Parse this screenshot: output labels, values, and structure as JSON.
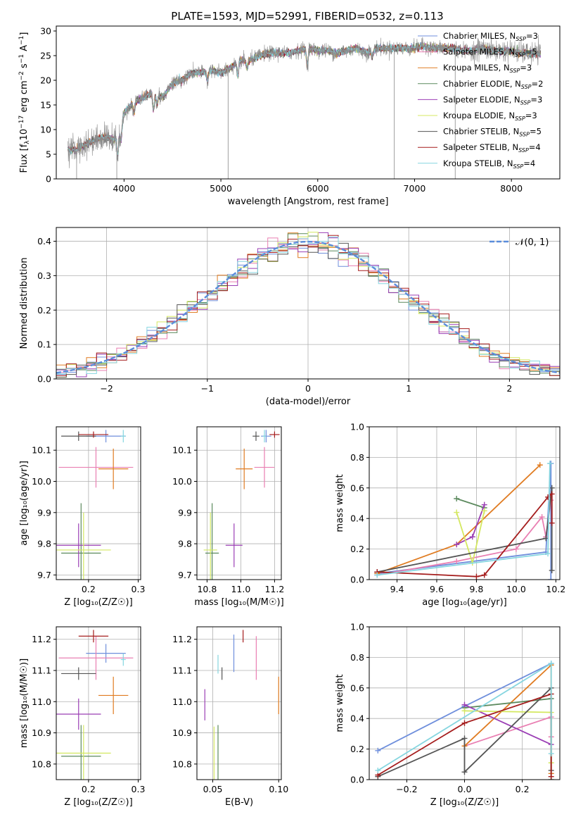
{
  "colors": {
    "Chabrier MILES": "#6f8fdc",
    "Salpeter MILES": "#e97fb2",
    "Kroupa MILES": "#e07c22",
    "Chabrier ELODIE": "#5c8a5e",
    "Salpeter ELODIE": "#9b3fb5",
    "Kroupa ELODIE": "#d4e860",
    "Chabrier STELIB": "#555555",
    "Salpeter STELIB": "#a51d1d",
    "Kroupa STELIB": "#86d6e0"
  },
  "chart_data": [
    {
      "id": "spectrum",
      "type": "line",
      "title": "PLATE=1593, MJD=52991, FIBERID=0532, z=0.113",
      "xlabel": "wavelength [Angstrom, rest frame]",
      "ylabel_parts": [
        "Flux [f",
        "λ",
        "10",
        "−17",
        " erg cm",
        "−2",
        " s",
        "−1",
        " A",
        "−1",
        "]"
      ],
      "xlim": [
        3300,
        8500
      ],
      "ylim": [
        0,
        31
      ],
      "xticks": [
        4000,
        5000,
        6000,
        7000,
        8000
      ],
      "yticks": [
        0,
        5,
        10,
        15,
        20,
        25,
        30
      ],
      "grid": false,
      "legend_position": "upper right",
      "legend": [
        {
          "model": "Chabrier MILES",
          "n": "3"
        },
        {
          "model": "Salpeter MILES",
          "n": "5"
        },
        {
          "model": "Kroupa MILES",
          "n": "3"
        },
        {
          "model": "Chabrier ELODIE",
          "n": "2"
        },
        {
          "model": "Salpeter ELODIE",
          "n": "3"
        },
        {
          "model": "Kroupa ELODIE",
          "n": "3"
        },
        {
          "model": "Chabrier STELIB",
          "n": "5"
        },
        {
          "model": "Salpeter STELIB",
          "n": "4"
        },
        {
          "model": "Kroupa STELIB",
          "n": "4"
        }
      ],
      "continuum": {
        "x": [
          3420,
          3500,
          3600,
          3700,
          3800,
          3900,
          3950,
          4000,
          4100,
          4200,
          4300,
          4400,
          4500,
          4600,
          4700,
          4800,
          4900,
          5000,
          5100,
          5200,
          5300,
          5400,
          5500,
          5600,
          5700,
          5800,
          5900,
          6000,
          6100,
          6200,
          6300,
          6400,
          6500,
          6600,
          6700,
          6800,
          6900,
          7000,
          7100,
          7200,
          7300,
          7400,
          7500,
          7600,
          7700,
          7800,
          7900,
          8000,
          8100,
          8200,
          8300
        ],
        "y": [
          6.0,
          5.8,
          7.0,
          8.0,
          8.5,
          8.0,
          9.0,
          13.5,
          15.5,
          16.5,
          17.5,
          16.5,
          19.5,
          20.0,
          21.5,
          21.5,
          22.0,
          21.5,
          22.5,
          24.0,
          24.0,
          25.0,
          25.5,
          25.5,
          25.5,
          26.0,
          26.5,
          26.0,
          26.0,
          25.5,
          26.0,
          26.5,
          25.5,
          26.5,
          26.5,
          26.5,
          26.5,
          26.5,
          27.0,
          26.5,
          26.5,
          26.5,
          26.0,
          26.0,
          26.5,
          26.0,
          26.0,
          26.0,
          25.5,
          25.5,
          25.3
        ]
      },
      "absorption": [
        {
          "x": 3934,
          "depth": 4.0
        },
        {
          "x": 3969,
          "depth": 3.0
        },
        {
          "x": 4102,
          "depth": 2.0
        },
        {
          "x": 4304,
          "depth": 3.5
        },
        {
          "x": 4340,
          "depth": 2.0
        },
        {
          "x": 4861,
          "depth": 2.0
        },
        {
          "x": 5175,
          "depth": 3.0
        },
        {
          "x": 5270,
          "depth": 1.5
        },
        {
          "x": 5892,
          "depth": 3.5
        },
        {
          "x": 6563,
          "depth": 1.5
        }
      ],
      "spikes": [
        {
          "x": 3510,
          "y_min": 0.0
        },
        {
          "x": 3925,
          "y_min": 0.0
        },
        {
          "x": 5075,
          "y_min": 0.0
        },
        {
          "x": 6790,
          "y_min": 0.0
        },
        {
          "x": 7420,
          "y_min": 0.0
        }
      ]
    },
    {
      "id": "residual-histogram",
      "type": "bar",
      "xlabel": "(data-model)/error",
      "ylabel": "Normed distribution",
      "xlim": [
        -2.5,
        2.5
      ],
      "ylim": [
        0,
        0.44
      ],
      "xticks": [
        -2,
        -1,
        0,
        1,
        2
      ],
      "yticks": [
        0.0,
        0.1,
        0.2,
        0.3,
        0.4
      ],
      "grid": true,
      "bin_width": 0.1,
      "curve_label": "𝒩(0, 1)",
      "legend_position": "upper right",
      "curve_color": "#5b8ddb"
    },
    {
      "id": "age-vs-Z",
      "type": "scatter",
      "xlabel": "Z [log₁₀(Z/Z☉)]",
      "ylabel": "age  [log₁₀(age/yr)]",
      "xlim": [
        0.135,
        0.305
      ],
      "ylim": [
        9.685,
        10.175
      ],
      "xticks": [
        0.2,
        0.3
      ],
      "yticks": [
        9.7,
        9.8,
        9.9,
        10.0,
        10.1
      ],
      "grid": true,
      "points": [
        {
          "model": "Chabrier MILES",
          "x": 0.235,
          "xerr": 0.04,
          "y": 10.145,
          "yerr": 0.02
        },
        {
          "model": "Salpeter MILES",
          "x": 0.215,
          "xerr": 0.075,
          "y": 10.045,
          "yerr": 0.065
        },
        {
          "model": "Kroupa MILES",
          "x": 0.25,
          "xerr": 0.03,
          "y": 10.04,
          "yerr": 0.065
        },
        {
          "model": "Chabrier ELODIE",
          "x": 0.185,
          "xerr": 0.04,
          "y": 9.77,
          "yerr": 0.16
        },
        {
          "model": "Salpeter ELODIE",
          "x": 0.18,
          "xerr": 0.045,
          "y": 9.795,
          "yerr": 0.07
        },
        {
          "model": "Kroupa ELODIE",
          "x": 0.19,
          "xerr": 0.055,
          "y": 9.78,
          "yerr": 0.12
        },
        {
          "model": "Chabrier STELIB",
          "x": 0.18,
          "xerr": 0.035,
          "y": 10.145,
          "yerr": 0.015
        },
        {
          "model": "Salpeter STELIB",
          "x": 0.21,
          "xerr": 0.03,
          "y": 10.15,
          "yerr": 0.01
        },
        {
          "model": "Kroupa STELIB",
          "x": 0.27,
          "xerr": 0.005,
          "y": 10.145,
          "yerr": 0.02
        }
      ]
    },
    {
      "id": "age-vs-mass",
      "type": "scatter",
      "xlabel": "mass [log₁₀(M/M☉)]",
      "ylabel": "",
      "xlim": [
        10.74,
        11.24
      ],
      "ylim": [
        9.685,
        10.175
      ],
      "xticks": [
        10.8,
        11.0,
        11.2
      ],
      "yticks": [
        9.7,
        9.8,
        9.9,
        10.0,
        10.1
      ],
      "grid": true,
      "points": [
        {
          "model": "Chabrier MILES",
          "x": 11.15,
          "xerr": 0.03,
          "y": 10.145,
          "yerr": 0.02
        },
        {
          "model": "Salpeter MILES",
          "x": 11.14,
          "xerr": 0.06,
          "y": 10.045,
          "yerr": 0.065
        },
        {
          "model": "Kroupa MILES",
          "x": 11.02,
          "xerr": 0.05,
          "y": 10.04,
          "yerr": 0.065
        },
        {
          "model": "Chabrier ELODIE",
          "x": 10.83,
          "xerr": 0.04,
          "y": 9.77,
          "yerr": 0.16
        },
        {
          "model": "Salpeter ELODIE",
          "x": 10.96,
          "xerr": 0.05,
          "y": 9.795,
          "yerr": 0.07
        },
        {
          "model": "Kroupa ELODIE",
          "x": 10.82,
          "xerr": 0.04,
          "y": 9.78,
          "yerr": 0.12
        },
        {
          "model": "Chabrier STELIB",
          "x": 11.09,
          "xerr": 0.02,
          "y": 10.145,
          "yerr": 0.015
        },
        {
          "model": "Salpeter STELIB",
          "x": 11.2,
          "xerr": 0.03,
          "y": 10.15,
          "yerr": 0.01
        },
        {
          "model": "Kroupa STELIB",
          "x": 11.14,
          "xerr": 0.01,
          "y": 10.145,
          "yerr": 0.02
        }
      ]
    },
    {
      "id": "weight-vs-age",
      "type": "line",
      "xlabel": "age  [log₁₀(age/yr)]",
      "ylabel": "mass weight",
      "xlim": [
        9.26,
        10.22
      ],
      "ylim": [
        0,
        1
      ],
      "xticks": [
        9.4,
        9.6,
        9.8,
        10.0,
        10.2
      ],
      "yticks": [
        0.0,
        0.2,
        0.4,
        0.6,
        0.8,
        1.0
      ],
      "grid": true,
      "series": [
        {
          "model": "Chabrier MILES",
          "x": [
            9.3,
            10.15,
            10.175,
            10.175
          ],
          "y": [
            0.04,
            0.18,
            0.76,
            0.0
          ]
        },
        {
          "model": "Salpeter MILES",
          "x": [
            9.3,
            9.7,
            10.0,
            10.13,
            10.15,
            10.175
          ],
          "y": [
            0.03,
            0.12,
            0.2,
            0.41,
            0.28,
            0.52
          ]
        },
        {
          "model": "Kroupa MILES",
          "x": [
            9.3,
            9.7,
            10.12
          ],
          "y": [
            0.04,
            0.23,
            0.75
          ]
        },
        {
          "model": "Chabrier ELODIE",
          "x": [
            9.7,
            9.84
          ],
          "y": [
            0.53,
            0.47
          ]
        },
        {
          "model": "Salpeter ELODIE",
          "x": [
            9.7,
            9.78,
            9.84
          ],
          "y": [
            0.23,
            0.28,
            0.49
          ]
        },
        {
          "model": "Kroupa ELODIE",
          "x": [
            9.7,
            9.78,
            9.84
          ],
          "y": [
            0.44,
            0.11,
            0.45
          ]
        },
        {
          "model": "Chabrier STELIB",
          "x": [
            9.3,
            10.15,
            10.18,
            10.18
          ],
          "y": [
            0.05,
            0.27,
            0.6,
            0.06
          ]
        },
        {
          "model": "Salpeter STELIB",
          "x": [
            9.3,
            9.8,
            9.84,
            10.16,
            10.18,
            10.18
          ],
          "y": [
            0.05,
            0.02,
            0.03,
            0.54,
            0.56,
            0.37
          ]
        },
        {
          "model": "Kroupa STELIB",
          "x": [
            9.3,
            10.16,
            10.17
          ],
          "y": [
            0.03,
            0.17,
            0.76
          ]
        }
      ]
    },
    {
      "id": "mass-vs-Z",
      "type": "scatter",
      "xlabel": "Z [log₁₀(Z/Z☉)]",
      "ylabel": "mass [log₁₀(M/M☉)]",
      "xlim": [
        0.135,
        0.305
      ],
      "ylim": [
        10.75,
        11.24
      ],
      "xticks": [
        0.2,
        0.3
      ],
      "yticks": [
        10.8,
        10.9,
        11.0,
        11.1,
        11.2
      ],
      "grid": true,
      "points": [
        {
          "model": "Chabrier MILES",
          "x": 0.235,
          "xerr": 0.04,
          "y": 11.155,
          "yerr": 0.03
        },
        {
          "model": "Salpeter MILES",
          "x": 0.215,
          "xerr": 0.075,
          "y": 11.14,
          "yerr": 0.07
        },
        {
          "model": "Kroupa MILES",
          "x": 0.25,
          "xerr": 0.03,
          "y": 11.02,
          "yerr": 0.06
        },
        {
          "model": "Chabrier ELODIE",
          "x": 0.185,
          "xerr": 0.04,
          "y": 10.825,
          "yerr": 0.1
        },
        {
          "model": "Salpeter ELODIE",
          "x": 0.18,
          "xerr": 0.045,
          "y": 10.96,
          "yerr": 0.05
        },
        {
          "model": "Kroupa ELODIE",
          "x": 0.19,
          "xerr": 0.055,
          "y": 10.835,
          "yerr": 0.09
        },
        {
          "model": "Chabrier STELIB",
          "x": 0.18,
          "xerr": 0.035,
          "y": 11.09,
          "yerr": 0.02
        },
        {
          "model": "Salpeter STELIB",
          "x": 0.21,
          "xerr": 0.03,
          "y": 11.21,
          "yerr": 0.02
        },
        {
          "model": "Kroupa STELIB",
          "x": 0.27,
          "xerr": 0.005,
          "y": 11.135,
          "yerr": 0.02
        }
      ]
    },
    {
      "id": "mass-vs-EBV",
      "type": "scatter",
      "xlabel": "E(B-V)",
      "ylabel": "",
      "xlim": [
        0.038,
        0.102
      ],
      "ylim": [
        10.75,
        11.24
      ],
      "xticks": [
        0.05,
        0.1
      ],
      "yticks": [
        10.8,
        10.9,
        11.0,
        11.1,
        11.2
      ],
      "grid": true,
      "points": [
        {
          "model": "Chabrier MILES",
          "x": 0.066,
          "y": 11.155,
          "yerr": 0.06
        },
        {
          "model": "Salpeter MILES",
          "x": 0.083,
          "y": 11.14,
          "yerr": 0.07
        },
        {
          "model": "Kroupa MILES",
          "x": 0.1,
          "y": 11.02,
          "yerr": 0.06
        },
        {
          "model": "Chabrier ELODIE",
          "x": 0.054,
          "y": 10.825,
          "yerr": 0.1
        },
        {
          "model": "Salpeter ELODIE",
          "x": 0.044,
          "y": 10.99,
          "yerr": 0.05
        },
        {
          "model": "Kroupa ELODIE",
          "x": 0.051,
          "y": 10.83,
          "yerr": 0.09
        },
        {
          "model": "Chabrier STELIB",
          "x": 0.057,
          "y": 11.09,
          "yerr": 0.02
        },
        {
          "model": "Salpeter STELIB",
          "x": 0.073,
          "y": 11.21,
          "yerr": 0.02
        },
        {
          "model": "Kroupa STELIB",
          "x": 0.054,
          "y": 11.12,
          "yerr": 0.03
        }
      ]
    },
    {
      "id": "weight-vs-Z",
      "type": "line",
      "xlabel": "Z [log₁₀(Z/Z☉)]",
      "ylabel": "mass weight",
      "xlim": [
        -0.33,
        0.33
      ],
      "ylim": [
        0,
        1
      ],
      "xticks": [
        -0.2,
        0.0,
        0.2
      ],
      "yticks": [
        0.0,
        0.2,
        0.4,
        0.6,
        0.8,
        1.0
      ],
      "grid": true,
      "series": [
        {
          "model": "Chabrier MILES",
          "x": [
            -0.3,
            0.0,
            0.3
          ],
          "y": [
            0.19,
            0.48,
            0.76
          ]
        },
        {
          "model": "Salpeter MILES",
          "x": [
            0.0,
            0.3,
            0.3
          ],
          "y": [
            0.22,
            0.41,
            0.28
          ]
        },
        {
          "model": "Kroupa MILES",
          "x": [
            0.0,
            0.3,
            0.3
          ],
          "y": [
            0.22,
            0.75,
            0.04
          ]
        },
        {
          "model": "Chabrier ELODIE",
          "x": [
            0.0,
            0.3,
            0.3
          ],
          "y": [
            0.47,
            0.53,
            0.0
          ]
        },
        {
          "model": "Salpeter ELODIE",
          "x": [
            0.0,
            0.3
          ],
          "y": [
            0.49,
            0.23
          ]
        },
        {
          "model": "Kroupa ELODIE",
          "x": [
            0.0,
            0.3,
            0.3
          ],
          "y": [
            0.45,
            0.44,
            0.11
          ]
        },
        {
          "model": "Chabrier STELIB",
          "x": [
            -0.3,
            0.0,
            0.0,
            0.3,
            0.3
          ],
          "y": [
            0.02,
            0.27,
            0.05,
            0.6,
            0.06
          ]
        },
        {
          "model": "Salpeter STELIB",
          "x": [
            -0.3,
            0.0,
            0.3,
            0.3
          ],
          "y": [
            0.03,
            0.37,
            0.56,
            0.02
          ]
        },
        {
          "model": "Kroupa STELIB",
          "x": [
            -0.3,
            0.3,
            0.3
          ],
          "y": [
            0.06,
            0.76,
            0.17
          ]
        }
      ]
    }
  ]
}
